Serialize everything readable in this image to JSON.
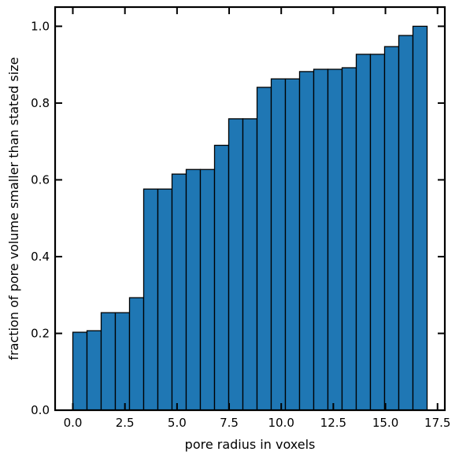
{
  "chart_data": {
    "type": "bar",
    "title": "",
    "xlabel": "pore radius in voxels",
    "ylabel": "fraction of pore volume smaller than stated size",
    "xlim": [
      -0.85,
      17.85
    ],
    "ylim": [
      0,
      1.05
    ],
    "x_ticks": [
      0.0,
      2.5,
      5.0,
      7.5,
      10.0,
      12.5,
      15.0,
      17.5
    ],
    "x_tick_labels": [
      "0.0",
      "2.5",
      "5.0",
      "7.5",
      "10.0",
      "12.5",
      "15.0",
      "17.5"
    ],
    "y_ticks": [
      0.0,
      0.2,
      0.4,
      0.6,
      0.8,
      1.0
    ],
    "y_tick_labels": [
      "0.0",
      "0.2",
      "0.4",
      "0.6",
      "0.8",
      "1.0"
    ],
    "bin_edges": [
      0.0,
      0.68,
      1.36,
      2.04,
      2.72,
      3.4,
      4.08,
      4.76,
      5.44,
      6.12,
      6.8,
      7.48,
      8.16,
      8.84,
      9.52,
      10.2,
      10.88,
      11.56,
      12.24,
      12.92,
      13.6,
      14.28,
      14.96,
      15.64,
      16.32,
      17.0
    ],
    "values": [
      0.203,
      0.207,
      0.254,
      0.254,
      0.293,
      0.576,
      0.576,
      0.615,
      0.627,
      0.627,
      0.69,
      0.759,
      0.759,
      0.841,
      0.863,
      0.863,
      0.882,
      0.888,
      0.888,
      0.892,
      0.927,
      0.927,
      0.947,
      0.976,
      1.0
    ],
    "bar_color": "#1f77b4",
    "edge_color": "#000000",
    "grid": false
  }
}
